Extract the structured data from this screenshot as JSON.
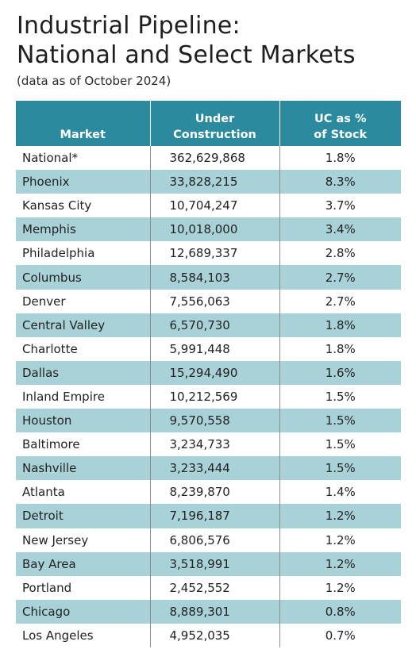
{
  "title_line1": "Industrial Pipeline:",
  "title_line2": "National and Select Markets",
  "subtitle": "(data as of October 2024)",
  "table": {
    "headers": {
      "market": "Market",
      "under_construction_line1": "Under",
      "under_construction_line2": "Construction",
      "uc_pct_line1": "UC as %",
      "uc_pct_line2": "of Stock"
    },
    "rows": [
      {
        "market": "National*",
        "under_construction": "362,629,868",
        "uc_pct": "1.8%"
      },
      {
        "market": "Phoenix",
        "under_construction": "33,828,215",
        "uc_pct": "8.3%"
      },
      {
        "market": "Kansas City",
        "under_construction": "10,704,247",
        "uc_pct": "3.7%"
      },
      {
        "market": "Memphis",
        "under_construction": "10,018,000",
        "uc_pct": "3.4%"
      },
      {
        "market": "Philadelphia",
        "under_construction": "12,689,337",
        "uc_pct": "2.8%"
      },
      {
        "market": "Columbus",
        "under_construction": "8,584,103",
        "uc_pct": "2.7%"
      },
      {
        "market": "Denver",
        "under_construction": "7,556,063",
        "uc_pct": "2.7%"
      },
      {
        "market": "Central Valley",
        "under_construction": "6,570,730",
        "uc_pct": "1.8%"
      },
      {
        "market": "Charlotte",
        "under_construction": "5,991,448",
        "uc_pct": "1.8%"
      },
      {
        "market": "Dallas",
        "under_construction": "15,294,490",
        "uc_pct": "1.6%"
      },
      {
        "market": "Inland Empire",
        "under_construction": "10,212,569",
        "uc_pct": "1.5%"
      },
      {
        "market": "Houston",
        "under_construction": "9,570,558",
        "uc_pct": "1.5%"
      },
      {
        "market": "Baltimore",
        "under_construction": "3,234,733",
        "uc_pct": "1.5%"
      },
      {
        "market": "Nashville",
        "under_construction": "3,233,444",
        "uc_pct": "1.5%"
      },
      {
        "market": "Atlanta",
        "under_construction": "8,239,870",
        "uc_pct": "1.4%"
      },
      {
        "market": "Detroit",
        "under_construction": "7,196,187",
        "uc_pct": "1.2%"
      },
      {
        "market": "New Jersey",
        "under_construction": "6,806,576",
        "uc_pct": "1.2%"
      },
      {
        "market": "Bay Area",
        "under_construction": "3,518,991",
        "uc_pct": "1.2%"
      },
      {
        "market": "Portland",
        "under_construction": "2,452,552",
        "uc_pct": "1.2%"
      },
      {
        "market": "Chicago",
        "under_construction": "8,889,301",
        "uc_pct": "0.8%"
      },
      {
        "market": "Los Angeles",
        "under_construction": "4,952,035",
        "uc_pct": "0.7%"
      }
    ]
  },
  "colors": {
    "header_bg": "#2c8a9e",
    "stripe_bg": "#a8d1d8"
  }
}
